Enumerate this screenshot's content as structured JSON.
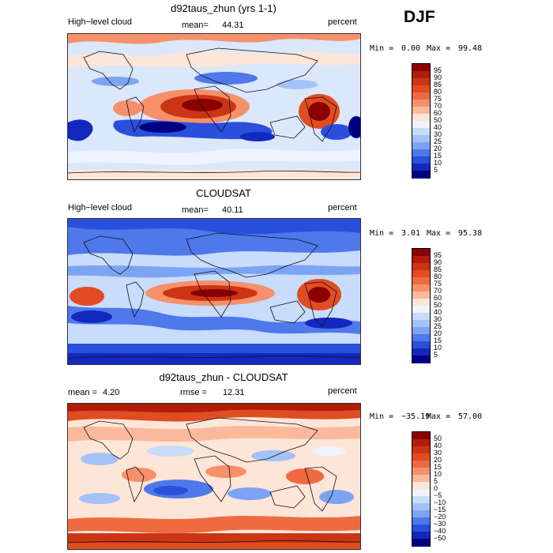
{
  "season": "DJF",
  "panels": [
    {
      "id": "model",
      "title": "d92taus_zhun (yrs 1-1)",
      "left_label": "High−level cloud",
      "stat1_label": "mean=",
      "stat1_value": "44.31",
      "stat2_label": "",
      "stat2_value": "",
      "units": "percent",
      "min_label": "Min =",
      "min_value": "0.00",
      "max_label": "Max =",
      "max_value": "99.48",
      "colorbar_labels": [
        "95",
        "90",
        "85",
        "80",
        "75",
        "70",
        "60",
        "50",
        "40",
        "30",
        "25",
        "20",
        "15",
        "10",
        "5"
      ],
      "colorbar_colors": [
        "#8b0000",
        "#b01c08",
        "#cc3514",
        "#e24c22",
        "#ef6a40",
        "#f6906a",
        "#fab99c",
        "#fde6d8",
        "#eef4ff",
        "#c8dcfc",
        "#a4c2f8",
        "#7da4f2",
        "#4f78ea",
        "#2a4fdc",
        "#1328bf",
        "#000082"
      ]
    },
    {
      "id": "obs",
      "title": "CLOUDSAT",
      "left_label": "High−level cloud",
      "stat1_label": "mean=",
      "stat1_value": "40.11",
      "stat2_label": "",
      "stat2_value": "",
      "units": "percent",
      "min_label": "Min =",
      "min_value": "3.01",
      "max_label": "Max =",
      "max_value": "95.38",
      "colorbar_labels": [
        "95",
        "90",
        "85",
        "80",
        "75",
        "70",
        "60",
        "50",
        "40",
        "30",
        "25",
        "20",
        "15",
        "10",
        "5"
      ],
      "colorbar_colors": [
        "#8b0000",
        "#b01c08",
        "#cc3514",
        "#e24c22",
        "#ef6a40",
        "#f6906a",
        "#fab99c",
        "#fde6d8",
        "#eef4ff",
        "#c8dcfc",
        "#a4c2f8",
        "#7da4f2",
        "#4f78ea",
        "#2a4fdc",
        "#1328bf",
        "#000082"
      ]
    },
    {
      "id": "diff",
      "title": "d92taus_zhun - CLOUDSAT",
      "left_label": "",
      "stat1_label": "mean =",
      "stat1_value": "4.20",
      "stat2_label": "rmse =",
      "stat2_value": "12.31",
      "units": "percent",
      "min_label": "Min =",
      "min_value": "−35.19",
      "max_label": "Max =",
      "max_value": "57.00",
      "colorbar_labels": [
        "50",
        "40",
        "30",
        "20",
        "15",
        "10",
        "5",
        "0",
        "−5",
        "−10",
        "−15",
        "−20",
        "−30",
        "−40",
        "−50"
      ],
      "colorbar_colors": [
        "#8b0000",
        "#b01c08",
        "#cc3514",
        "#e24c22",
        "#ef6a40",
        "#f6906a",
        "#fab99c",
        "#fde6d8",
        "#eef4ff",
        "#c8dcfc",
        "#a4c2f8",
        "#7da4f2",
        "#4f78ea",
        "#2a4fdc",
        "#1328bf",
        "#000082"
      ]
    }
  ]
}
